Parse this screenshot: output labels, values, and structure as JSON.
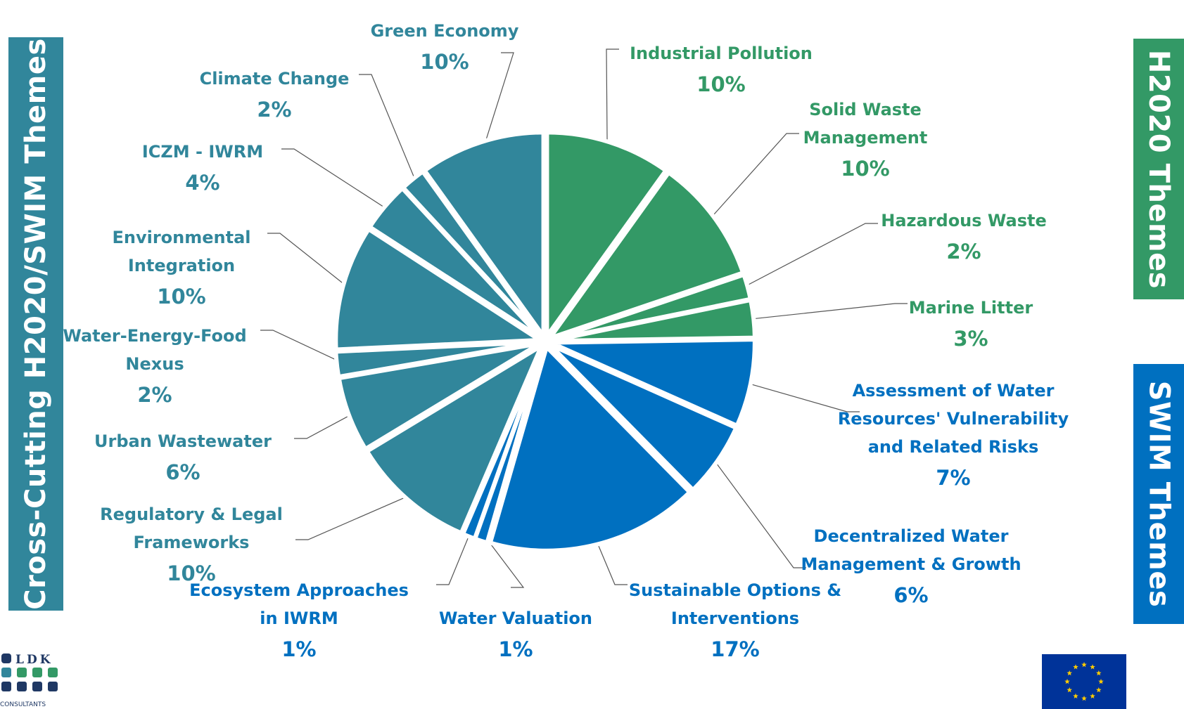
{
  "side_labels": {
    "left": "Cross-Cutting H2020/SWIM Themes",
    "right_top": "H2020 Themes",
    "right_bottom": "SWIM Themes"
  },
  "colors": {
    "cross_cutting": "#31869b",
    "h2020": "#339966",
    "swim": "#0070c0"
  },
  "chart_data": {
    "type": "pie",
    "title": "",
    "slices": [
      {
        "label": "Industrial Pollution",
        "label_lines": [
          "Industrial Pollution"
        ],
        "value": 10,
        "value_label": "10%",
        "group": "h2020"
      },
      {
        "label": "Solid Waste Management",
        "label_lines": [
          "Solid Waste",
          "Management"
        ],
        "value": 10,
        "value_label": "10%",
        "group": "h2020"
      },
      {
        "label": "Hazardous Waste",
        "label_lines": [
          "Hazardous Waste"
        ],
        "value": 2,
        "value_label": "2%",
        "group": "h2020"
      },
      {
        "label": "Marine Litter",
        "label_lines": [
          "Marine Litter"
        ],
        "value": 3,
        "value_label": "3%",
        "group": "h2020"
      },
      {
        "label": "Assessment of Water Resources' Vulnerability and Related Risks",
        "label_lines": [
          "Assessment of Water",
          "Resources' Vulnerability",
          "and Related Risks"
        ],
        "value": 7,
        "value_label": "7%",
        "group": "swim"
      },
      {
        "label": "Decentralized Water Management & Growth",
        "label_lines": [
          "Decentralized Water",
          "Management & Growth"
        ],
        "value": 6,
        "value_label": "6%",
        "group": "swim"
      },
      {
        "label": "Sustainable Options & Interventions",
        "label_lines": [
          "Sustainable Options &",
          "Interventions"
        ],
        "value": 17,
        "value_label": "17%",
        "group": "swim"
      },
      {
        "label": "Water Valuation",
        "label_lines": [
          "Water Valuation"
        ],
        "value": 1,
        "value_label": "1%",
        "group": "swim"
      },
      {
        "label": "Ecosystem Approaches in IWRM",
        "label_lines": [
          "Ecosystem Approaches",
          "in IWRM"
        ],
        "value": 1,
        "value_label": "1%",
        "group": "swim"
      },
      {
        "label": "Regulatory & Legal Frameworks",
        "label_lines": [
          "Regulatory & Legal",
          "Frameworks"
        ],
        "value": 10,
        "value_label": "10%",
        "group": "cross_cutting"
      },
      {
        "label": "Urban Wastewater",
        "label_lines": [
          "Urban Wastewater"
        ],
        "value": 6,
        "value_label": "6%",
        "group": "cross_cutting"
      },
      {
        "label": "Water-Energy-Food Nexus",
        "label_lines": [
          "Water-Energy-Food",
          "Nexus"
        ],
        "value": 2,
        "value_label": "2%",
        "group": "cross_cutting"
      },
      {
        "label": "Environmental Integration",
        "label_lines": [
          "Environmental",
          "Integration"
        ],
        "value": 10,
        "value_label": "10%",
        "group": "cross_cutting"
      },
      {
        "label": "ICZM - IWRM",
        "label_lines": [
          "ICZM - IWRM"
        ],
        "value": 4,
        "value_label": "4%",
        "group": "cross_cutting"
      },
      {
        "label": "Climate Change",
        "label_lines": [
          "Climate Change"
        ],
        "value": 2,
        "value_label": "2%",
        "group": "cross_cutting"
      },
      {
        "label": "Green Economy",
        "label_lines": [
          "Green Economy"
        ],
        "value": 10,
        "value_label": "10%",
        "group": "cross_cutting"
      }
    ]
  },
  "logos": {
    "ldk_text": "LDK",
    "ldk_subtext": "CONSULTANTS"
  }
}
